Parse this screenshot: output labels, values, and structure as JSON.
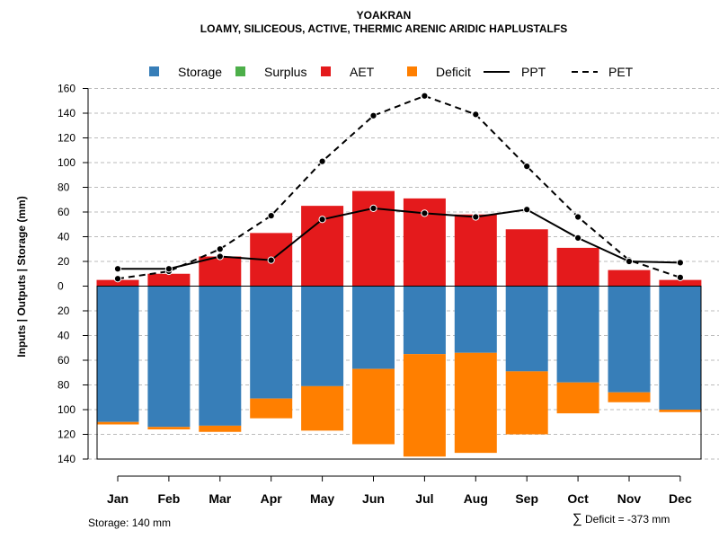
{
  "chart_data": {
    "type": "bar",
    "title": "YOAKRAN",
    "subtitle": "LOAMY, SILICEOUS, ACTIVE, THERMIC ARENIC ARIDIC HAPLUSTALFS",
    "ylabel": "Inputs | Outputs | Storage    (mm)",
    "categories": [
      "Jan",
      "Feb",
      "Mar",
      "Apr",
      "May",
      "Jun",
      "Jul",
      "Aug",
      "Sep",
      "Oct",
      "Nov",
      "Dec"
    ],
    "y_ticks_above": [
      0,
      20,
      40,
      60,
      80,
      100,
      120,
      140,
      160
    ],
    "y_ticks_below": [
      20,
      40,
      60,
      80,
      100,
      120,
      140
    ],
    "ylim_above": [
      0,
      160
    ],
    "ylim_below": [
      0,
      140
    ],
    "storage_capacity": 140,
    "series": [
      {
        "name": "Storage",
        "color": "#377EB8",
        "values": [
          110,
          114,
          113,
          91,
          81,
          67,
          55,
          54,
          69,
          78,
          86,
          100
        ]
      },
      {
        "name": "Surplus",
        "color": "#4DAF4A",
        "values": [
          0,
          0,
          0,
          0,
          0,
          0,
          0,
          0,
          0,
          0,
          0,
          0
        ]
      },
      {
        "name": "AET",
        "color": "#E41A1C",
        "values": [
          5,
          10,
          24,
          43,
          65,
          77,
          71,
          58,
          46,
          31,
          13,
          5
        ]
      },
      {
        "name": "Deficit",
        "color": "#FF7F00",
        "values": [
          2,
          2,
          5,
          16,
          36,
          61,
          83,
          81,
          51,
          25,
          8,
          2
        ]
      },
      {
        "name": "PPT",
        "color": "#000000",
        "style": "solid",
        "values": [
          14,
          14,
          24,
          21,
          54,
          63,
          59,
          56,
          62,
          39,
          20,
          19
        ]
      },
      {
        "name": "PET",
        "color": "#000000",
        "style": "dashed",
        "values": [
          6,
          12,
          30,
          57,
          101,
          138,
          154,
          139,
          97,
          56,
          21,
          7
        ]
      }
    ],
    "legend_position": "top",
    "grid": true
  },
  "footer": {
    "storage_note": "Storage: 140 mm",
    "deficit_symbol": "∑",
    "deficit_note": "Deficit = -373 mm"
  }
}
